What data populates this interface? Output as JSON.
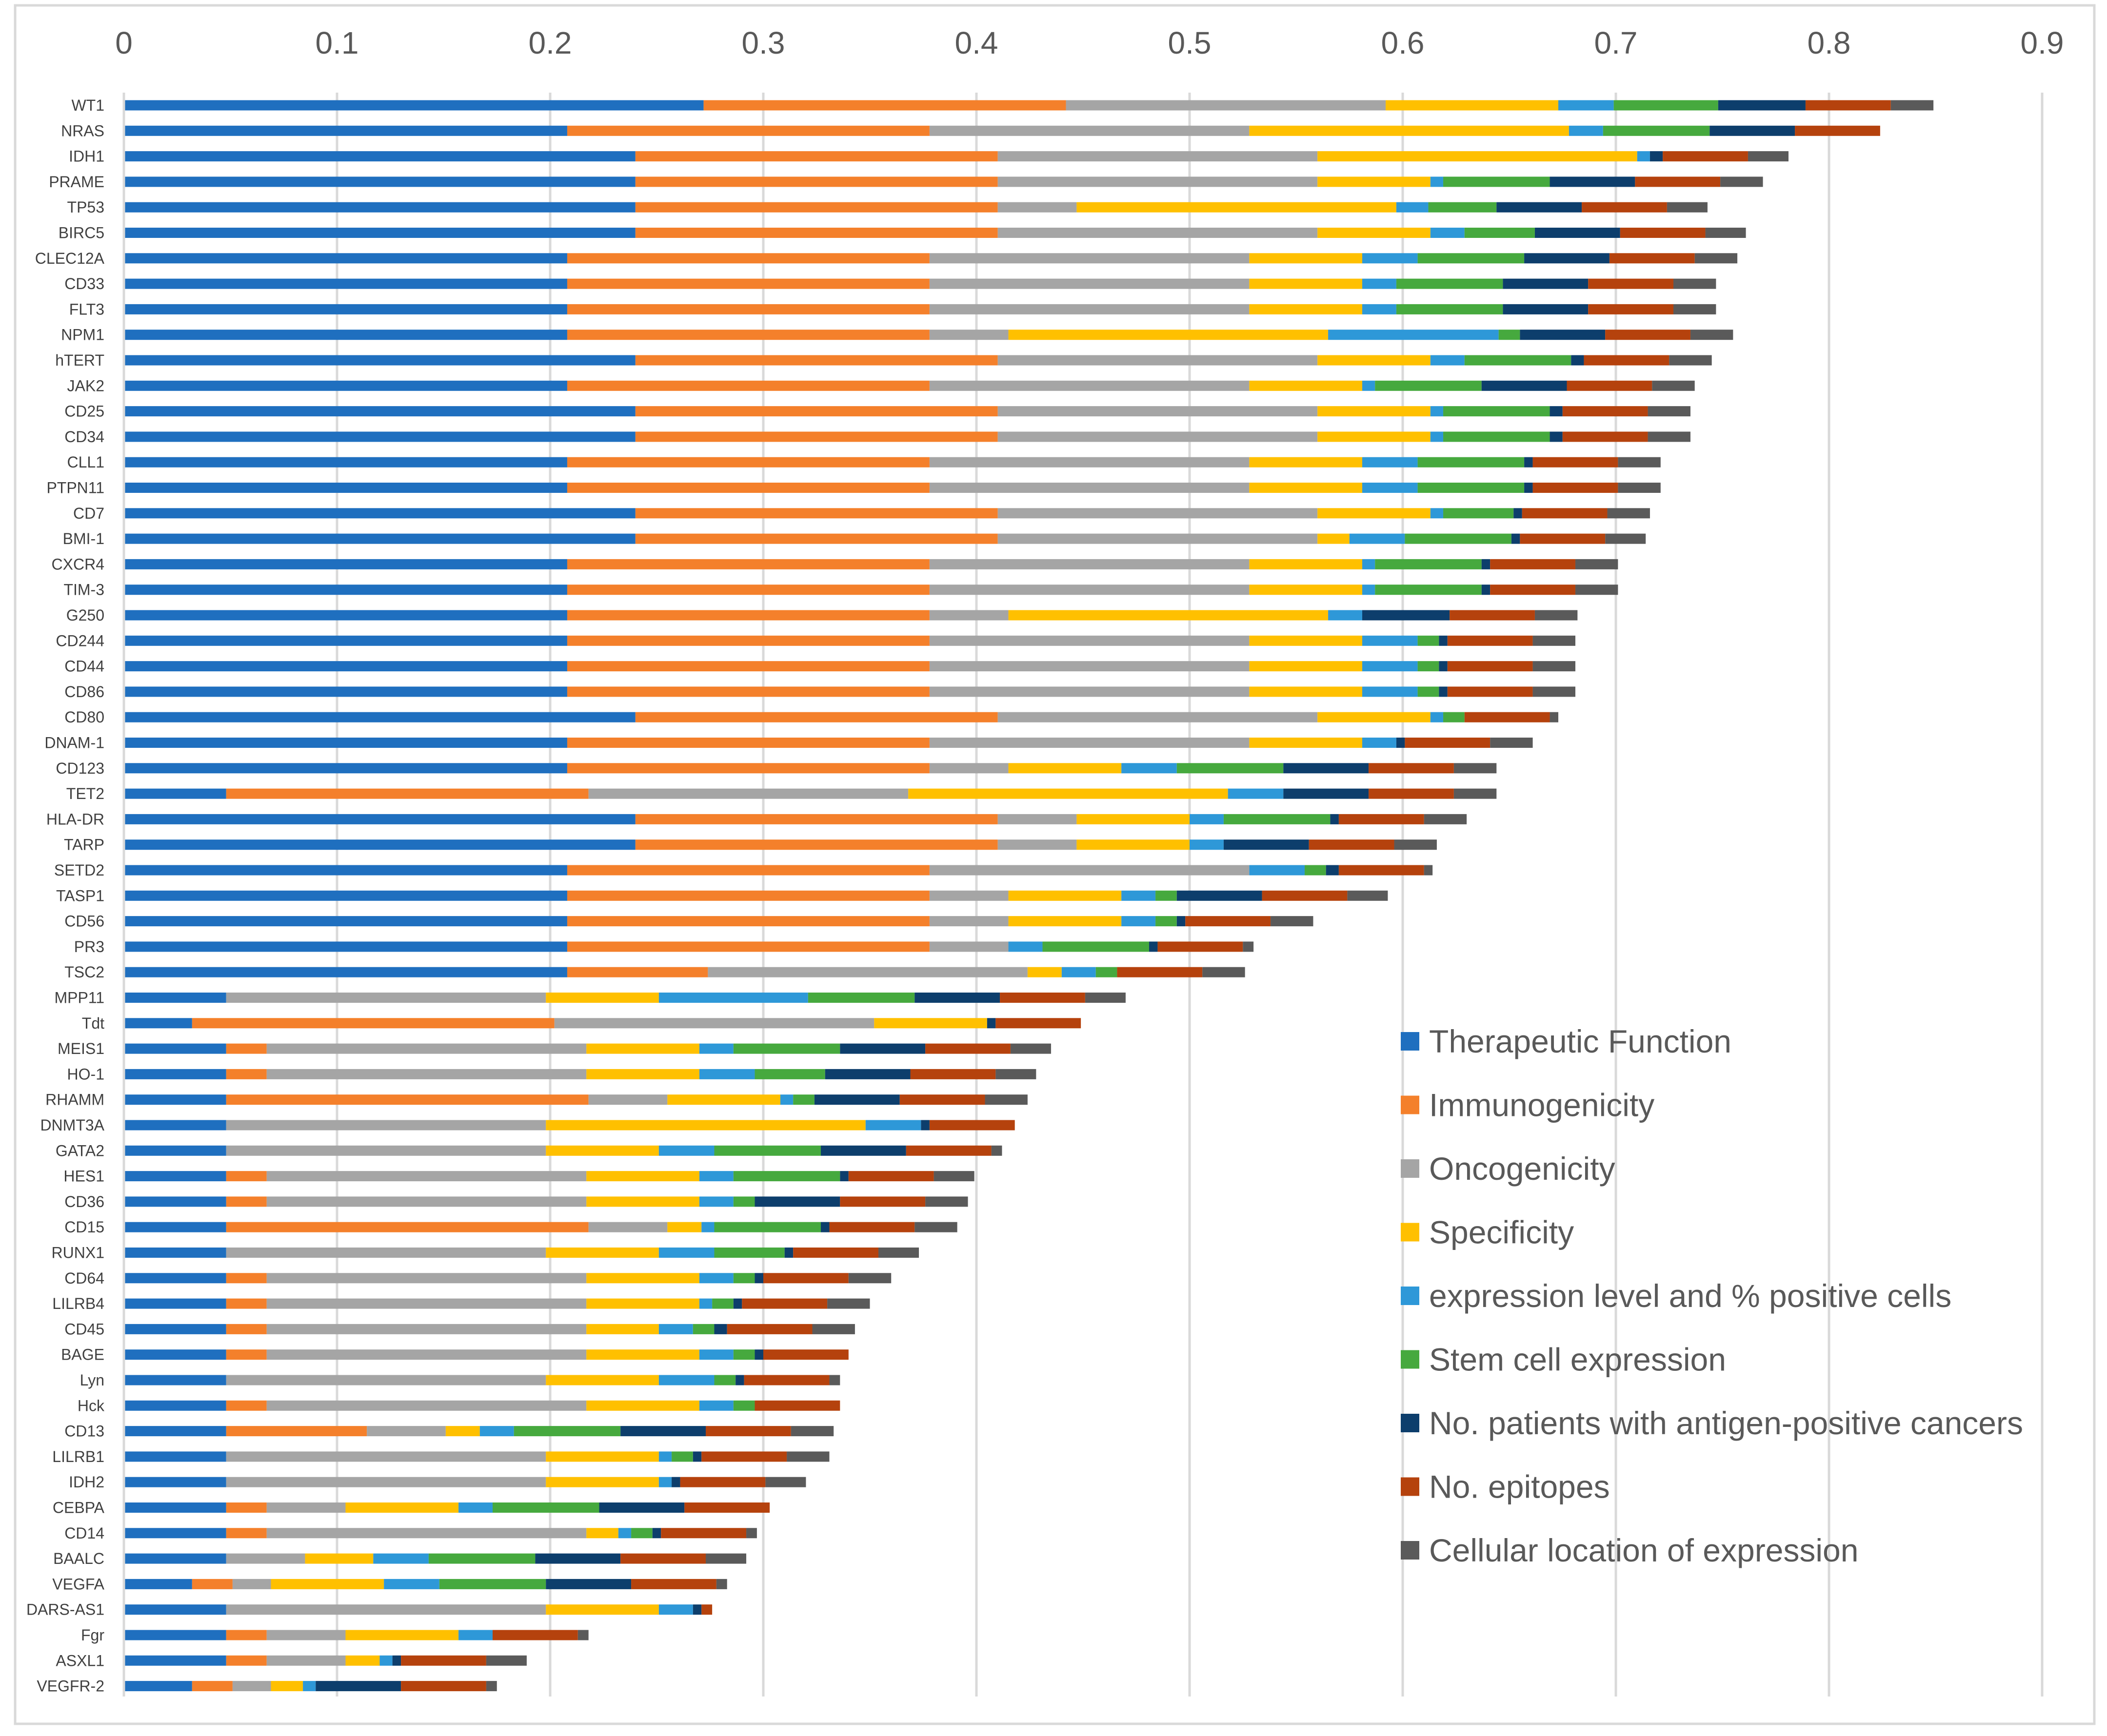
{
  "chart_data": {
    "type": "stacked-horizontal-bar",
    "title": "",
    "xlim": [
      0,
      0.9
    ],
    "x_ticks": [
      "0",
      "0.1",
      "0.2",
      "0.3",
      "0.4",
      "0.5",
      "0.6",
      "0.7",
      "0.8",
      "0.9"
    ],
    "grid": "vertical",
    "legend_position": "right-lower",
    "series": [
      {
        "name": "Therapeutic Function",
        "color": "#1F6FBF"
      },
      {
        "name": "Immunogenicity",
        "color": "#F4802B"
      },
      {
        "name": "Oncogenicity",
        "color": "#A5A5A5"
      },
      {
        "name": "Specificity",
        "color": "#FFC000"
      },
      {
        "name": "expression level and % positive cells",
        "color": "#2E98D8"
      },
      {
        "name": "Stem cell expression",
        "color": "#46A93E"
      },
      {
        "name": "No. patients with antigen-positive cancers",
        "color": "#0D3E6C"
      },
      {
        "name": "No. epitopes",
        "color": "#B5420D"
      },
      {
        "name": "Cellular location of expression",
        "color": "#5A5A5A"
      }
    ],
    "categories": [
      {
        "label": "WT1",
        "values": [
          0.272,
          0.17,
          0.15,
          0.081,
          0.026,
          0.049,
          0.041,
          0.04,
          0.02
        ]
      },
      {
        "label": "NRAS",
        "values": [
          0.208,
          0.17,
          0.15,
          0.15,
          0.016,
          0.05,
          0.04,
          0.04,
          0.0
        ]
      },
      {
        "label": "IDH1",
        "values": [
          0.24,
          0.17,
          0.15,
          0.15,
          0.006,
          0.0,
          0.006,
          0.04,
          0.019
        ]
      },
      {
        "label": "PRAME",
        "values": [
          0.24,
          0.17,
          0.15,
          0.053,
          0.006,
          0.05,
          0.04,
          0.04,
          0.02
        ]
      },
      {
        "label": "TP53",
        "values": [
          0.24,
          0.17,
          0.037,
          0.15,
          0.015,
          0.032,
          0.04,
          0.04,
          0.019
        ]
      },
      {
        "label": "BIRC5",
        "values": [
          0.24,
          0.17,
          0.15,
          0.053,
          0.016,
          0.033,
          0.04,
          0.04,
          0.019
        ]
      },
      {
        "label": "CLEC12A",
        "values": [
          0.208,
          0.17,
          0.15,
          0.053,
          0.026,
          0.05,
          0.04,
          0.04,
          0.02
        ]
      },
      {
        "label": "CD33",
        "values": [
          0.208,
          0.17,
          0.15,
          0.053,
          0.016,
          0.05,
          0.04,
          0.04,
          0.02
        ]
      },
      {
        "label": "FLT3",
        "values": [
          0.208,
          0.17,
          0.15,
          0.053,
          0.016,
          0.05,
          0.04,
          0.04,
          0.02
        ]
      },
      {
        "label": "NPM1",
        "values": [
          0.208,
          0.17,
          0.037,
          0.15,
          0.08,
          0.01,
          0.04,
          0.04,
          0.02
        ]
      },
      {
        "label": "hTERT",
        "values": [
          0.24,
          0.17,
          0.15,
          0.053,
          0.016,
          0.05,
          0.006,
          0.04,
          0.02
        ]
      },
      {
        "label": "JAK2",
        "values": [
          0.208,
          0.17,
          0.15,
          0.053,
          0.006,
          0.05,
          0.04,
          0.04,
          0.02
        ]
      },
      {
        "label": "CD25",
        "values": [
          0.24,
          0.17,
          0.15,
          0.053,
          0.006,
          0.05,
          0.006,
          0.04,
          0.02
        ]
      },
      {
        "label": "CD34",
        "values": [
          0.24,
          0.17,
          0.15,
          0.053,
          0.006,
          0.05,
          0.006,
          0.04,
          0.02
        ]
      },
      {
        "label": "CLL1",
        "values": [
          0.208,
          0.17,
          0.15,
          0.053,
          0.026,
          0.05,
          0.004,
          0.04,
          0.02
        ]
      },
      {
        "label": "PTPN11",
        "values": [
          0.208,
          0.17,
          0.15,
          0.053,
          0.026,
          0.05,
          0.004,
          0.04,
          0.02
        ]
      },
      {
        "label": "CD7",
        "values": [
          0.24,
          0.17,
          0.15,
          0.053,
          0.006,
          0.033,
          0.004,
          0.04,
          0.02
        ]
      },
      {
        "label": "BMI-1",
        "values": [
          0.24,
          0.17,
          0.15,
          0.015,
          0.026,
          0.05,
          0.004,
          0.04,
          0.019
        ]
      },
      {
        "label": "CXCR4",
        "values": [
          0.208,
          0.17,
          0.15,
          0.053,
          0.006,
          0.05,
          0.004,
          0.04,
          0.02
        ]
      },
      {
        "label": "TIM-3",
        "values": [
          0.208,
          0.17,
          0.15,
          0.053,
          0.006,
          0.05,
          0.004,
          0.04,
          0.02
        ]
      },
      {
        "label": "G250",
        "values": [
          0.208,
          0.17,
          0.037,
          0.15,
          0.016,
          0.0,
          0.041,
          0.04,
          0.02
        ]
      },
      {
        "label": "CD244",
        "values": [
          0.208,
          0.17,
          0.15,
          0.053,
          0.026,
          0.01,
          0.004,
          0.04,
          0.02
        ]
      },
      {
        "label": "CD44",
        "values": [
          0.208,
          0.17,
          0.15,
          0.053,
          0.026,
          0.01,
          0.004,
          0.04,
          0.02
        ]
      },
      {
        "label": "CD86",
        "values": [
          0.208,
          0.17,
          0.15,
          0.053,
          0.026,
          0.01,
          0.004,
          0.04,
          0.02
        ]
      },
      {
        "label": "CD80",
        "values": [
          0.24,
          0.17,
          0.15,
          0.053,
          0.006,
          0.01,
          0.0,
          0.04,
          0.004
        ]
      },
      {
        "label": "DNAM-1",
        "values": [
          0.208,
          0.17,
          0.15,
          0.053,
          0.016,
          0.0,
          0.004,
          0.04,
          0.02
        ]
      },
      {
        "label": "CD123",
        "values": [
          0.208,
          0.17,
          0.037,
          0.053,
          0.026,
          0.05,
          0.04,
          0.04,
          0.02
        ]
      },
      {
        "label": "TET2",
        "values": [
          0.048,
          0.17,
          0.15,
          0.15,
          0.026,
          0.0,
          0.04,
          0.04,
          0.02
        ]
      },
      {
        "label": "HLA-DR",
        "values": [
          0.24,
          0.17,
          0.037,
          0.053,
          0.016,
          0.05,
          0.004,
          0.04,
          0.02
        ]
      },
      {
        "label": "TARP",
        "values": [
          0.24,
          0.17,
          0.037,
          0.053,
          0.016,
          0.0,
          0.04,
          0.04,
          0.02
        ]
      },
      {
        "label": "SETD2",
        "values": [
          0.208,
          0.17,
          0.15,
          0.0,
          0.026,
          0.01,
          0.006,
          0.04,
          0.004
        ]
      },
      {
        "label": "TASP1",
        "values": [
          0.208,
          0.17,
          0.037,
          0.053,
          0.016,
          0.01,
          0.04,
          0.04,
          0.019
        ]
      },
      {
        "label": "CD56",
        "values": [
          0.208,
          0.17,
          0.037,
          0.053,
          0.016,
          0.01,
          0.004,
          0.04,
          0.02
        ]
      },
      {
        "label": "PR3",
        "values": [
          0.208,
          0.17,
          0.037,
          0.0,
          0.016,
          0.05,
          0.004,
          0.04,
          0.005
        ]
      },
      {
        "label": "TSC2",
        "values": [
          0.208,
          0.066,
          0.15,
          0.016,
          0.016,
          0.01,
          0.0,
          0.04,
          0.02
        ]
      },
      {
        "label": "MPP11",
        "values": [
          0.048,
          0.0,
          0.15,
          0.053,
          0.07,
          0.05,
          0.04,
          0.04,
          0.019
        ]
      },
      {
        "label": "Tdt",
        "values": [
          0.032,
          0.17,
          0.15,
          0.053,
          0.0,
          0.0,
          0.004,
          0.04,
          0.0
        ]
      },
      {
        "label": "MEIS1",
        "values": [
          0.048,
          0.019,
          0.15,
          0.053,
          0.016,
          0.05,
          0.04,
          0.04,
          0.019
        ]
      },
      {
        "label": "HO-1",
        "values": [
          0.048,
          0.019,
          0.15,
          0.053,
          0.026,
          0.033,
          0.04,
          0.04,
          0.019
        ]
      },
      {
        "label": "RHAMM",
        "values": [
          0.048,
          0.17,
          0.037,
          0.053,
          0.006,
          0.01,
          0.04,
          0.04,
          0.02
        ]
      },
      {
        "label": "DNMT3A",
        "values": [
          0.048,
          0.0,
          0.15,
          0.15,
          0.026,
          0.0,
          0.004,
          0.04,
          0.0
        ]
      },
      {
        "label": "GATA2",
        "values": [
          0.048,
          0.0,
          0.15,
          0.053,
          0.026,
          0.05,
          0.04,
          0.04,
          0.005
        ]
      },
      {
        "label": "HES1",
        "values": [
          0.048,
          0.019,
          0.15,
          0.053,
          0.016,
          0.05,
          0.004,
          0.04,
          0.019
        ]
      },
      {
        "label": "CD36",
        "values": [
          0.048,
          0.019,
          0.15,
          0.053,
          0.016,
          0.01,
          0.04,
          0.04,
          0.02
        ]
      },
      {
        "label": "CD15",
        "values": [
          0.048,
          0.17,
          0.037,
          0.016,
          0.006,
          0.05,
          0.004,
          0.04,
          0.02
        ]
      },
      {
        "label": "RUNX1",
        "values": [
          0.048,
          0.0,
          0.15,
          0.053,
          0.026,
          0.033,
          0.004,
          0.04,
          0.019
        ]
      },
      {
        "label": "CD64",
        "values": [
          0.048,
          0.019,
          0.15,
          0.053,
          0.016,
          0.01,
          0.004,
          0.04,
          0.02
        ]
      },
      {
        "label": "LILRB4",
        "values": [
          0.048,
          0.019,
          0.15,
          0.053,
          0.006,
          0.01,
          0.004,
          0.04,
          0.02
        ]
      },
      {
        "label": "CD45",
        "values": [
          0.048,
          0.019,
          0.15,
          0.034,
          0.016,
          0.01,
          0.006,
          0.04,
          0.02
        ]
      },
      {
        "label": "BAGE",
        "values": [
          0.048,
          0.019,
          0.15,
          0.053,
          0.016,
          0.01,
          0.004,
          0.04,
          0.0
        ]
      },
      {
        "label": "Lyn",
        "values": [
          0.048,
          0.0,
          0.15,
          0.053,
          0.026,
          0.01,
          0.004,
          0.04,
          0.005
        ]
      },
      {
        "label": "Hck",
        "values": [
          0.048,
          0.019,
          0.15,
          0.053,
          0.016,
          0.01,
          0.0,
          0.04,
          0.0
        ]
      },
      {
        "label": "CD13",
        "values": [
          0.048,
          0.066,
          0.037,
          0.016,
          0.016,
          0.05,
          0.04,
          0.04,
          0.02
        ]
      },
      {
        "label": "LILRB1",
        "values": [
          0.048,
          0.0,
          0.15,
          0.053,
          0.006,
          0.01,
          0.004,
          0.04,
          0.02
        ]
      },
      {
        "label": "IDH2",
        "values": [
          0.048,
          0.0,
          0.15,
          0.053,
          0.006,
          0.0,
          0.004,
          0.04,
          0.019
        ]
      },
      {
        "label": "CEBPA",
        "values": [
          0.048,
          0.019,
          0.037,
          0.053,
          0.016,
          0.05,
          0.04,
          0.04,
          0.0
        ]
      },
      {
        "label": "CD14",
        "values": [
          0.048,
          0.019,
          0.15,
          0.015,
          0.006,
          0.01,
          0.004,
          0.04,
          0.005
        ]
      },
      {
        "label": "BAALC",
        "values": [
          0.048,
          0.0,
          0.037,
          0.032,
          0.026,
          0.05,
          0.04,
          0.04,
          0.019
        ]
      },
      {
        "label": "VEGFA",
        "values": [
          0.032,
          0.019,
          0.018,
          0.053,
          0.026,
          0.05,
          0.04,
          0.04,
          0.005
        ]
      },
      {
        "label": "DARS-AS1",
        "values": [
          0.048,
          0.0,
          0.15,
          0.053,
          0.016,
          0.0,
          0.004,
          0.005,
          0.0
        ]
      },
      {
        "label": "Fgr",
        "values": [
          0.048,
          0.019,
          0.037,
          0.053,
          0.016,
          0.0,
          0.0,
          0.04,
          0.005
        ]
      },
      {
        "label": "ASXL1",
        "values": [
          0.048,
          0.019,
          0.037,
          0.016,
          0.006,
          0.0,
          0.004,
          0.04,
          0.019
        ]
      },
      {
        "label": "VEGFR-2",
        "values": [
          0.032,
          0.019,
          0.018,
          0.015,
          0.006,
          0.0,
          0.04,
          0.04,
          0.005
        ]
      }
    ]
  }
}
